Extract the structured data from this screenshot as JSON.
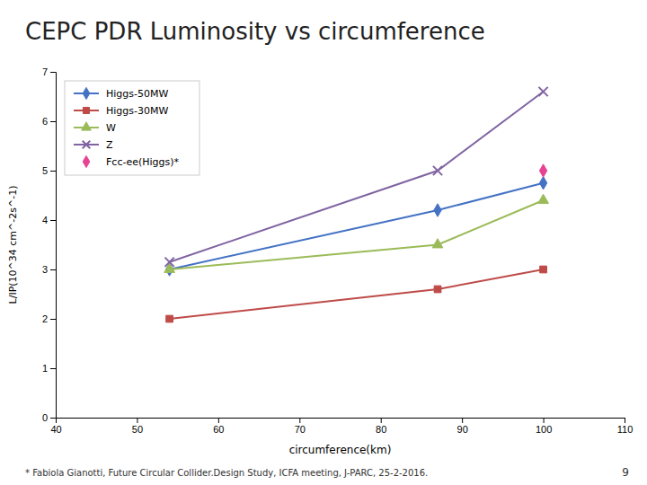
{
  "chart_data": {
    "type": "line",
    "title": "CEPC PDR Luminosity vs circumference",
    "x_label": "circumference(km)",
    "y_label": "L/IP(10^34 cm^-2s^-1)",
    "xlim": [
      40,
      110
    ],
    "ylim": [
      0,
      7
    ],
    "xticks": [
      40,
      50,
      60,
      70,
      80,
      90,
      100,
      110
    ],
    "yticks": [
      0,
      1,
      2,
      3,
      4,
      5,
      6,
      7
    ],
    "grid": false,
    "legend": "upper left",
    "series": [
      {
        "name": "Higgs-50MW",
        "color": "#4472C4",
        "marker": "diamond",
        "x": [
          54,
          87,
          100
        ],
        "values": [
          3.0,
          4.2,
          4.75
        ]
      },
      {
        "name": "Higgs-30MW",
        "color": "#BE4B48",
        "marker": "square",
        "x": [
          54,
          87,
          100
        ],
        "values": [
          2.0,
          2.6,
          3.0
        ]
      },
      {
        "name": "W",
        "color": "#9BBB59",
        "marker": "triangle",
        "x": [
          54,
          87,
          100
        ],
        "values": [
          3.0,
          3.5,
          4.4
        ]
      },
      {
        "name": "Z",
        "color": "#8064A2",
        "marker": "x",
        "x": [
          54,
          87,
          100
        ],
        "values": [
          3.15,
          5.0,
          6.6
        ]
      },
      {
        "name": "Fcc-ee(Higgs)*",
        "color": "#E84393",
        "marker": "diamond",
        "type": "scatter",
        "x": [
          100
        ],
        "values": [
          5.0
        ]
      }
    ],
    "annotations": [
      "* Fabiola Gianotti, Future Circular Collider.Design Study, ICFA meeting, J-PARC, 25-2-2016.",
      "9"
    ]
  }
}
